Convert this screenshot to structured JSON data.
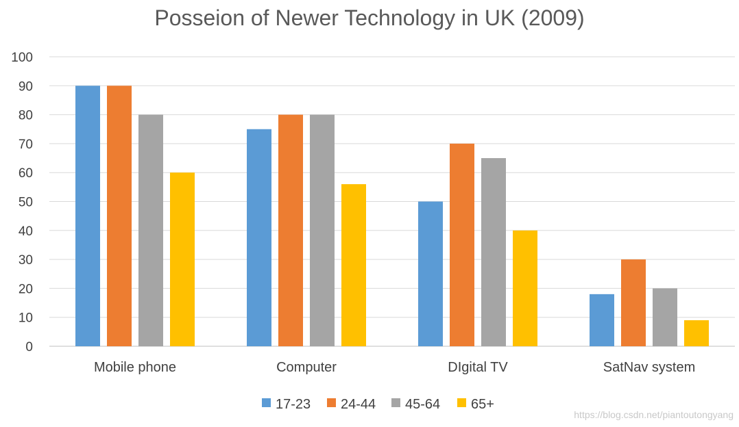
{
  "chart_data": {
    "type": "bar",
    "title": "Posseion of Newer Technology in UK (2009)",
    "xlabel": "",
    "ylabel": "",
    "ylim": [
      0,
      100
    ],
    "yticks": [
      0,
      10,
      20,
      30,
      40,
      50,
      60,
      70,
      80,
      90,
      100
    ],
    "grid": true,
    "legend_position": "bottom",
    "categories": [
      "Mobile phone",
      "Computer",
      "DIgital TV",
      "SatNav system"
    ],
    "series": [
      {
        "name": "17-23",
        "color": "#5B9BD5",
        "values": [
          90,
          75,
          50,
          18
        ]
      },
      {
        "name": "24-44",
        "color": "#ED7D31",
        "values": [
          90,
          80,
          70,
          30
        ]
      },
      {
        "name": "45-64",
        "color": "#A5A5A5",
        "values": [
          80,
          80,
          65,
          20
        ]
      },
      {
        "name": "65+",
        "color": "#FFC000",
        "values": [
          60,
          56,
          40,
          9
        ]
      }
    ]
  },
  "watermark": "https://blog.csdn.net/piantoutongyang"
}
